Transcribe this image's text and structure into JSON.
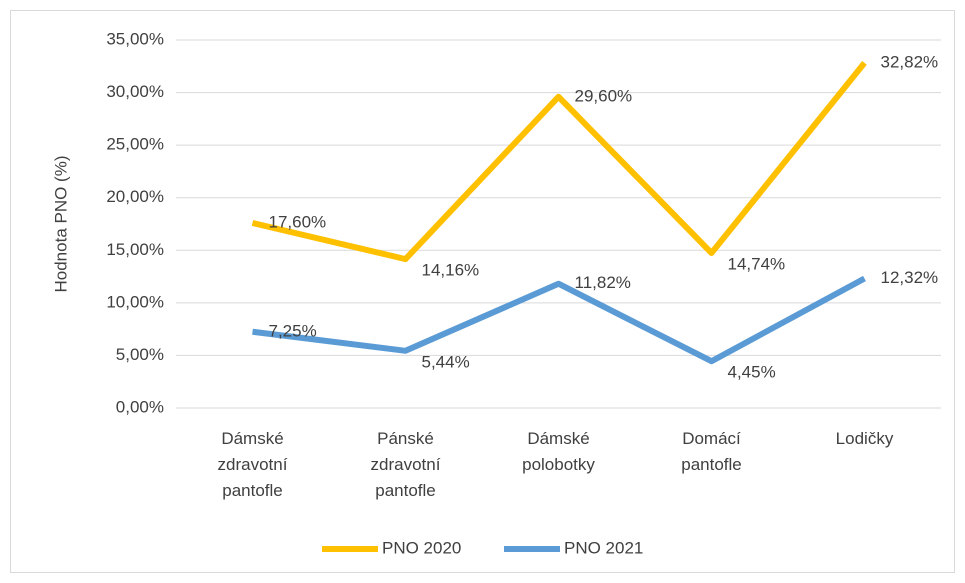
{
  "chart_data": {
    "type": "line",
    "categories": [
      "Dámské zdravotní pantofle",
      "Pánské zdravotní pantofle",
      "Dámské polobotky",
      "Domácí pantofle",
      "Lodičky"
    ],
    "y_label": "Hodnota PNO (%)",
    "series": [
      {
        "name": "PNO 2020",
        "color": "#FFC000",
        "values": [
          17.6,
          14.16,
          29.6,
          14.74,
          32.82
        ],
        "value_labels": [
          "17,60%",
          "14,16%",
          "29,60%",
          "14,74%",
          "32,82%"
        ]
      },
      {
        "name": "PNO 2021",
        "color": "#5B9BD5",
        "values": [
          7.25,
          5.44,
          11.82,
          4.45,
          12.32
        ],
        "value_labels": [
          "7,25%",
          "5,44%",
          "11,82%",
          "4,45%",
          "12,32%"
        ]
      }
    ],
    "ylim": [
      0,
      35
    ],
    "yticks": [
      {
        "value": 0,
        "label": "0,00%"
      },
      {
        "value": 5,
        "label": "5,00%"
      },
      {
        "value": 10,
        "label": "10,00%"
      },
      {
        "value": 15,
        "label": "15,00%"
      },
      {
        "value": 20,
        "label": "20,00%"
      },
      {
        "value": 25,
        "label": "25,00%"
      },
      {
        "value": 30,
        "label": "30,00%"
      },
      {
        "value": 35,
        "label": "35,00%"
      }
    ],
    "grid": true,
    "legend": "bottom"
  }
}
